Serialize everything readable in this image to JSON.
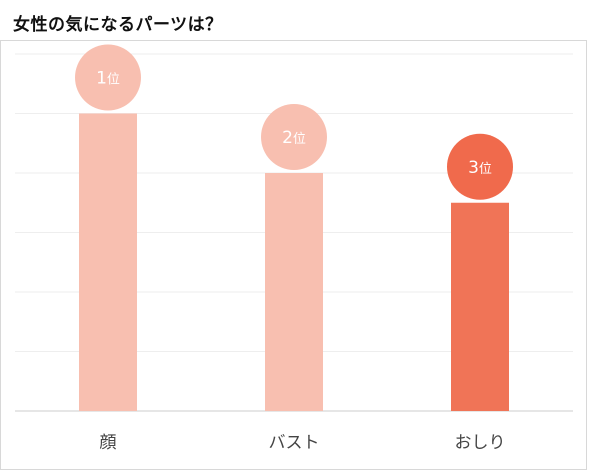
{
  "title": "女性の気になるパーツは？",
  "chart_data": {
    "type": "bar",
    "categories": [
      "顔",
      "バスト",
      "おしり"
    ],
    "values": [
      5,
      4,
      3.5
    ],
    "rank_labels": [
      {
        "number": "1",
        "suffix": "位"
      },
      {
        "number": "2",
        "suffix": "位"
      },
      {
        "number": "3",
        "suffix": "位"
      }
    ],
    "ylim": [
      0,
      6
    ],
    "grid": true,
    "colors": {
      "bar": "#f8bfb0",
      "highlight": "#f07457",
      "circle": "#f8bfb0",
      "highlight_circle": "#f06a4c",
      "grid": "#eeeeee",
      "axis": "#cccccc"
    },
    "highlight_index": 2
  }
}
